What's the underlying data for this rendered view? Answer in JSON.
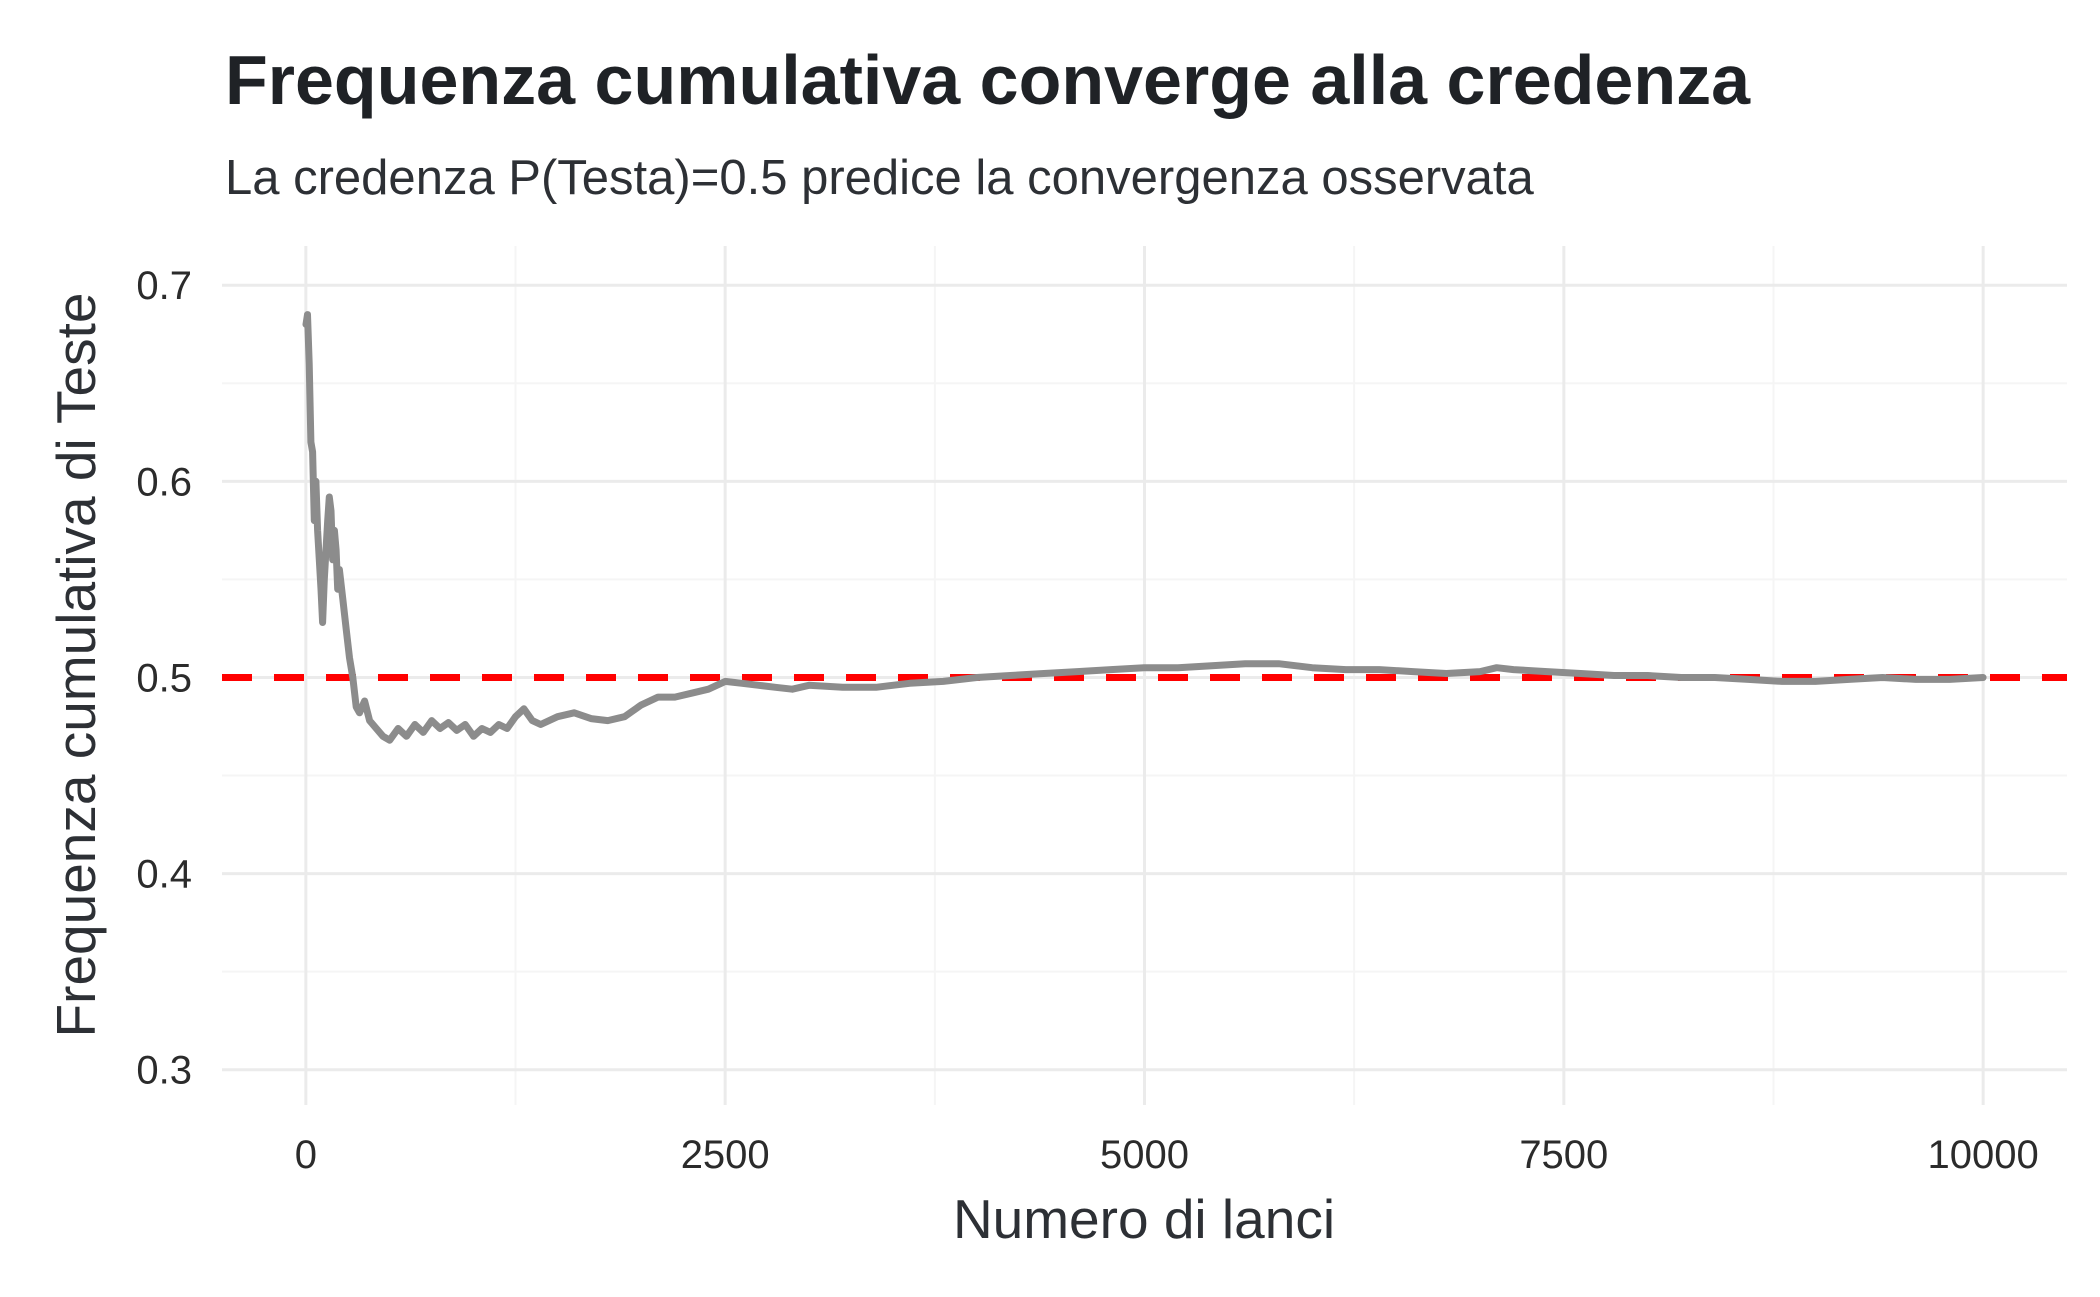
{
  "chart_data": {
    "type": "line",
    "title": "Frequenza cumulativa converge alla credenza",
    "subtitle": "La credenza P(Testa)=0.5 predice la convergenza osservata",
    "xlabel": "Numero di lanci",
    "ylabel": "Frequenza cumulativa di Teste",
    "xlim": [
      -500,
      10500
    ],
    "ylim": [
      0.282,
      0.72
    ],
    "x_ticks": [
      0,
      2500,
      5000,
      7500,
      10000
    ],
    "x_tick_labels": [
      "0",
      "2500",
      "5000",
      "7500",
      "10000"
    ],
    "y_ticks": [
      0.3,
      0.4,
      0.5,
      0.6,
      0.7
    ],
    "y_tick_labels": [
      "0.3",
      "0.4",
      "0.5",
      "0.6",
      "0.7"
    ],
    "grid": true,
    "legend": "none",
    "series": [
      {
        "color": "#8c8c8c",
        "x": [
          1,
          10,
          20,
          30,
          40,
          50,
          60,
          70,
          80,
          90,
          100,
          110,
          120,
          130,
          140,
          150,
          160,
          170,
          180,
          190,
          200,
          220,
          240,
          260,
          280,
          300,
          320,
          350,
          380,
          420,
          460,
          500,
          550,
          600,
          650,
          700,
          750,
          800,
          850,
          900,
          950,
          1000,
          1050,
          1100,
          1150,
          1200,
          1250,
          1300,
          1350,
          1400,
          1500,
          1600,
          1700,
          1800,
          1900,
          2000,
          2100,
          2200,
          2300,
          2400,
          2500,
          2600,
          2700,
          2800,
          2900,
          3000,
          3200,
          3400,
          3600,
          3800,
          4000,
          4200,
          4400,
          4600,
          4800,
          5000,
          5200,
          5400,
          5600,
          5800,
          6000,
          6200,
          6400,
          6600,
          6800,
          7000,
          7100,
          7200,
          7400,
          7600,
          7800,
          8000,
          8200,
          8400,
          8600,
          8800,
          9000,
          9200,
          9400,
          9600,
          9800,
          10000
        ],
        "y": [
          0.68,
          0.685,
          0.66,
          0.62,
          0.615,
          0.58,
          0.6,
          0.575,
          0.56,
          0.545,
          0.528,
          0.55,
          0.565,
          0.58,
          0.592,
          0.585,
          0.56,
          0.575,
          0.565,
          0.545,
          0.555,
          0.54,
          0.525,
          0.51,
          0.5,
          0.485,
          0.482,
          0.488,
          0.478,
          0.474,
          0.47,
          0.468,
          0.474,
          0.47,
          0.476,
          0.472,
          0.478,
          0.474,
          0.477,
          0.473,
          0.476,
          0.47,
          0.474,
          0.472,
          0.476,
          0.474,
          0.48,
          0.484,
          0.478,
          0.476,
          0.48,
          0.482,
          0.479,
          0.478,
          0.48,
          0.486,
          0.49,
          0.49,
          0.492,
          0.494,
          0.498,
          0.497,
          0.496,
          0.495,
          0.494,
          0.496,
          0.495,
          0.495,
          0.497,
          0.498,
          0.5,
          0.501,
          0.502,
          0.503,
          0.504,
          0.505,
          0.505,
          0.506,
          0.507,
          0.507,
          0.505,
          0.504,
          0.504,
          0.503,
          0.502,
          0.503,
          0.505,
          0.504,
          0.503,
          0.502,
          0.501,
          0.501,
          0.5,
          0.5,
          0.499,
          0.498,
          0.498,
          0.499,
          0.5,
          0.499,
          0.499,
          0.5
        ]
      }
    ],
    "reference_line": {
      "y": 0.5,
      "color": "#ff0000",
      "style": "dashed"
    },
    "colors": {
      "background": "#ffffff",
      "grid_major": "#ebebeb",
      "grid_minor": "#f5f5f5",
      "text": "#1f2226"
    }
  }
}
